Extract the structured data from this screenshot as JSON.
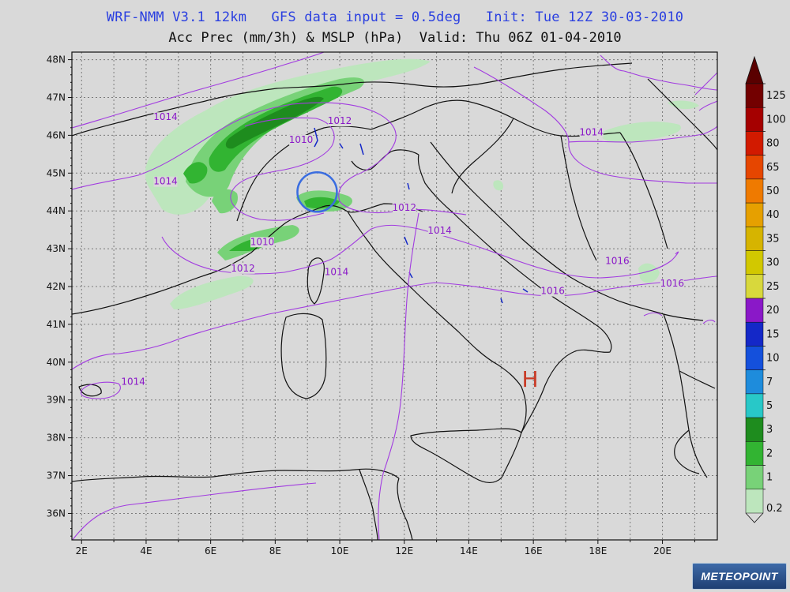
{
  "header": {
    "line1": "WRF-NMM V3.1 12km   GFS data input = 0.5deg   Init: Tue 12Z 30-03-2010",
    "line2": "Acc Prec (mm/3h) & MSLP (hPa)  Valid: Thu 06Z 01-04-2010"
  },
  "map": {
    "lat_labels": [
      "48N",
      "47N",
      "46N",
      "45N",
      "44N",
      "43N",
      "42N",
      "41N",
      "40N",
      "39N",
      "38N",
      "37N",
      "36N"
    ],
    "lon_labels": [
      "2E",
      "4E",
      "6E",
      "8E",
      "10E",
      "12E",
      "14E",
      "16E",
      "18E",
      "20E"
    ],
    "isobar_labels": [
      {
        "text": "1014",
        "lat": 46.4,
        "lon": 4.6
      },
      {
        "text": "1014",
        "lat": 44.7,
        "lon": 4.6
      },
      {
        "text": "1012",
        "lat": 46.3,
        "lon": 10.0
      },
      {
        "text": "1010",
        "lat": 45.8,
        "lon": 8.8
      },
      {
        "text": "1012",
        "lat": 44.0,
        "lon": 12.0
      },
      {
        "text": "1014",
        "lat": 43.4,
        "lon": 13.1
      },
      {
        "text": "1010",
        "lat": 43.1,
        "lon": 7.6
      },
      {
        "text": "1012",
        "lat": 42.4,
        "lon": 7.0
      },
      {
        "text": "1014",
        "lat": 42.3,
        "lon": 9.9
      },
      {
        "text": "1016",
        "lat": 42.6,
        "lon": 18.6
      },
      {
        "text": "1016",
        "lat": 42.0,
        "lon": 20.3
      },
      {
        "text": "1016",
        "lat": 41.8,
        "lon": 16.6
      },
      {
        "text": "1014",
        "lat": 46.0,
        "lon": 17.8
      },
      {
        "text": "1014",
        "lat": 39.4,
        "lon": 3.6
      }
    ],
    "high_marker": {
      "text": "H",
      "lat": 39.6,
      "lon": 15.9,
      "color": "#c83c28"
    },
    "highlight_circle": {
      "lat": 44.5,
      "lon": 9.3,
      "color": "#3a6de0"
    }
  },
  "colorbar": {
    "levels": [
      "125",
      "100",
      "80",
      "65",
      "50",
      "40",
      "35",
      "30",
      "25",
      "20",
      "15",
      "10",
      "7",
      "5",
      "3",
      "2",
      "1",
      "0.2"
    ],
    "colors": [
      "#730000",
      "#a50000",
      "#d21a00",
      "#e64600",
      "#ef7a00",
      "#e6a000",
      "#d6b400",
      "#d2c800",
      "#d8d83c",
      "#8a18c8",
      "#1428c8",
      "#1450dc",
      "#1e8cdc",
      "#28c8c8",
      "#1e8c1e",
      "#32b432",
      "#78d278",
      "#bde6bd"
    ]
  },
  "logo": {
    "text": "METEOPOINT"
  }
}
